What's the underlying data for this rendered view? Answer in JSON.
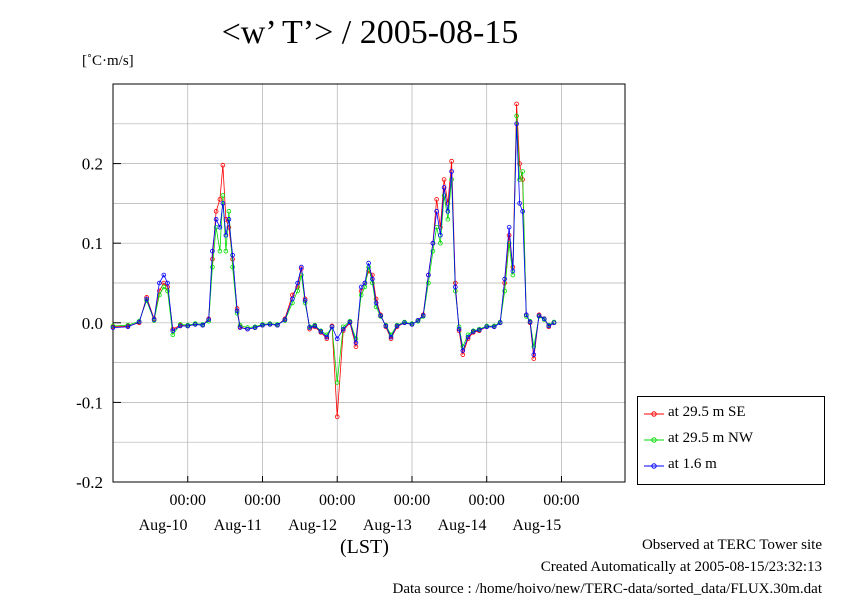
{
  "chart_data": {
    "type": "line",
    "title": "<w’ T’> / 2005-08-15",
    "y_unit": "[˚C·m/s]",
    "xlabel": "(LST)",
    "ylim": [
      -0.2,
      0.3
    ],
    "xlim": [
      -1.0,
      5.85
    ],
    "y_ticks": [
      0.2,
      0.1,
      0.0,
      -0.1,
      -0.2
    ],
    "y_tick_labels": [
      "0.2",
      "0.1",
      "0.0",
      "-0.1",
      "-0.2"
    ],
    "x_time_ticks": [
      0,
      1,
      2,
      3,
      4,
      5
    ],
    "x_time_labels": [
      "00:00",
      "00:00",
      "00:00",
      "00:00",
      "00:00",
      "00:00"
    ],
    "x_date_ticks": [
      -0.33,
      0.67,
      1.67,
      2.67,
      3.67,
      4.67
    ],
    "x_date_labels": [
      "Aug-10",
      "Aug-11",
      "Aug-12",
      "Aug-13",
      "Aug-14",
      "Aug-15"
    ],
    "grid": true,
    "legend_position": "bottom-right outside",
    "series": [
      {
        "name": "at 29.5 m SE",
        "color": "#ff0000",
        "points": [
          [
            -1.0,
            -0.005
          ],
          [
            -0.8,
            -0.004
          ],
          [
            -0.65,
            0.0
          ],
          [
            -0.55,
            0.032
          ],
          [
            -0.45,
            0.005
          ],
          [
            -0.38,
            0.04
          ],
          [
            -0.32,
            0.05
          ],
          [
            -0.27,
            0.045
          ],
          [
            -0.2,
            -0.008
          ],
          [
            -0.1,
            -0.003
          ],
          [
            0.0,
            -0.004
          ],
          [
            0.1,
            -0.002
          ],
          [
            0.2,
            -0.003
          ],
          [
            0.28,
            0.005
          ],
          [
            0.33,
            0.08
          ],
          [
            0.38,
            0.14
          ],
          [
            0.43,
            0.155
          ],
          [
            0.47,
            0.198
          ],
          [
            0.51,
            0.13
          ],
          [
            0.55,
            0.12
          ],
          [
            0.6,
            0.08
          ],
          [
            0.66,
            0.018
          ],
          [
            0.7,
            -0.005
          ],
          [
            0.8,
            -0.008
          ],
          [
            0.9,
            -0.006
          ],
          [
            1.0,
            -0.003
          ],
          [
            1.1,
            -0.002
          ],
          [
            1.2,
            -0.003
          ],
          [
            1.3,
            0.005
          ],
          [
            1.4,
            0.035
          ],
          [
            1.47,
            0.045
          ],
          [
            1.52,
            0.068
          ],
          [
            1.57,
            0.03
          ],
          [
            1.63,
            -0.008
          ],
          [
            1.7,
            -0.005
          ],
          [
            1.78,
            -0.012
          ],
          [
            1.86,
            -0.02
          ],
          [
            1.93,
            -0.004
          ],
          [
            2.0,
            -0.118
          ],
          [
            2.08,
            -0.01
          ],
          [
            2.17,
            0.0
          ],
          [
            2.25,
            -0.03
          ],
          [
            2.32,
            0.04
          ],
          [
            2.37,
            0.05
          ],
          [
            2.42,
            0.065
          ],
          [
            2.47,
            0.06
          ],
          [
            2.52,
            0.03
          ],
          [
            2.58,
            0.01
          ],
          [
            2.65,
            -0.005
          ],
          [
            2.72,
            -0.02
          ],
          [
            2.8,
            -0.005
          ],
          [
            2.9,
            0.0
          ],
          [
            3.0,
            -0.002
          ],
          [
            3.08,
            0.003
          ],
          [
            3.15,
            0.01
          ],
          [
            3.22,
            0.06
          ],
          [
            3.28,
            0.1
          ],
          [
            3.33,
            0.155
          ],
          [
            3.38,
            0.12
          ],
          [
            3.43,
            0.18
          ],
          [
            3.48,
            0.15
          ],
          [
            3.53,
            0.203
          ],
          [
            3.58,
            0.05
          ],
          [
            3.63,
            -0.01
          ],
          [
            3.68,
            -0.04
          ],
          [
            3.75,
            -0.02
          ],
          [
            3.82,
            -0.012
          ],
          [
            3.9,
            -0.01
          ],
          [
            4.0,
            -0.005
          ],
          [
            4.1,
            -0.005
          ],
          [
            4.18,
            0.0
          ],
          [
            4.24,
            0.05
          ],
          [
            4.3,
            0.11
          ],
          [
            4.35,
            0.07
          ],
          [
            4.4,
            0.275
          ],
          [
            4.44,
            0.2
          ],
          [
            4.48,
            0.18
          ],
          [
            4.53,
            0.01
          ],
          [
            4.58,
            0.0
          ],
          [
            4.63,
            -0.045
          ],
          [
            4.7,
            0.01
          ],
          [
            4.77,
            0.005
          ],
          [
            4.83,
            -0.005
          ],
          [
            4.9,
            0.0
          ]
        ]
      },
      {
        "name": "at 29.5 m NW",
        "color": "#00dd00",
        "points": [
          [
            -1.0,
            -0.004
          ],
          [
            -0.8,
            -0.003
          ],
          [
            -0.65,
            0.002
          ],
          [
            -0.55,
            0.028
          ],
          [
            -0.45,
            0.003
          ],
          [
            -0.38,
            0.035
          ],
          [
            -0.32,
            0.045
          ],
          [
            -0.27,
            0.04
          ],
          [
            -0.2,
            -0.015
          ],
          [
            -0.1,
            -0.002
          ],
          [
            0.0,
            -0.003
          ],
          [
            0.1,
            -0.001
          ],
          [
            0.2,
            -0.002
          ],
          [
            0.28,
            0.002
          ],
          [
            0.33,
            0.07
          ],
          [
            0.38,
            0.12
          ],
          [
            0.43,
            0.09
          ],
          [
            0.47,
            0.16
          ],
          [
            0.51,
            0.09
          ],
          [
            0.55,
            0.14
          ],
          [
            0.6,
            0.07
          ],
          [
            0.66,
            0.012
          ],
          [
            0.7,
            -0.003
          ],
          [
            0.8,
            -0.006
          ],
          [
            0.9,
            -0.005
          ],
          [
            1.0,
            -0.002
          ],
          [
            1.1,
            -0.001
          ],
          [
            1.2,
            -0.002
          ],
          [
            1.3,
            0.003
          ],
          [
            1.4,
            0.025
          ],
          [
            1.47,
            0.04
          ],
          [
            1.52,
            0.06
          ],
          [
            1.57,
            0.025
          ],
          [
            1.63,
            -0.005
          ],
          [
            1.7,
            -0.003
          ],
          [
            1.78,
            -0.01
          ],
          [
            1.86,
            -0.015
          ],
          [
            1.93,
            -0.005
          ],
          [
            2.0,
            -0.075
          ],
          [
            2.08,
            -0.005
          ],
          [
            2.17,
            0.002
          ],
          [
            2.25,
            -0.02
          ],
          [
            2.32,
            0.035
          ],
          [
            2.37,
            0.045
          ],
          [
            2.42,
            0.07
          ],
          [
            2.47,
            0.05
          ],
          [
            2.52,
            0.02
          ],
          [
            2.58,
            0.008
          ],
          [
            2.65,
            -0.003
          ],
          [
            2.72,
            -0.015
          ],
          [
            2.8,
            -0.003
          ],
          [
            2.9,
            0.001
          ],
          [
            3.0,
            -0.001
          ],
          [
            3.08,
            0.002
          ],
          [
            3.15,
            0.008
          ],
          [
            3.22,
            0.05
          ],
          [
            3.28,
            0.09
          ],
          [
            3.33,
            0.12
          ],
          [
            3.38,
            0.1
          ],
          [
            3.43,
            0.16
          ],
          [
            3.48,
            0.13
          ],
          [
            3.53,
            0.18
          ],
          [
            3.58,
            0.04
          ],
          [
            3.63,
            -0.005
          ],
          [
            3.68,
            -0.03
          ],
          [
            3.75,
            -0.015
          ],
          [
            3.82,
            -0.01
          ],
          [
            3.9,
            -0.008
          ],
          [
            4.0,
            -0.004
          ],
          [
            4.1,
            -0.004
          ],
          [
            4.18,
            0.001
          ],
          [
            4.24,
            0.04
          ],
          [
            4.3,
            0.1
          ],
          [
            4.35,
            0.06
          ],
          [
            4.4,
            0.26
          ],
          [
            4.44,
            0.18
          ],
          [
            4.48,
            0.19
          ],
          [
            4.53,
            0.008
          ],
          [
            4.58,
            0.002
          ],
          [
            4.63,
            -0.03
          ],
          [
            4.7,
            0.008
          ],
          [
            4.77,
            0.004
          ],
          [
            4.83,
            -0.003
          ],
          [
            4.9,
            0.001
          ]
        ]
      },
      {
        "name": "at 1.6 m",
        "color": "#0000ff",
        "points": [
          [
            -1.0,
            -0.006
          ],
          [
            -0.8,
            -0.005
          ],
          [
            -0.65,
            0.001
          ],
          [
            -0.55,
            0.03
          ],
          [
            -0.45,
            0.004
          ],
          [
            -0.38,
            0.05
          ],
          [
            -0.32,
            0.06
          ],
          [
            -0.27,
            0.05
          ],
          [
            -0.2,
            -0.01
          ],
          [
            -0.1,
            -0.004
          ],
          [
            0.0,
            -0.004
          ],
          [
            0.1,
            -0.002
          ],
          [
            0.2,
            -0.003
          ],
          [
            0.28,
            0.004
          ],
          [
            0.33,
            0.09
          ],
          [
            0.38,
            0.13
          ],
          [
            0.43,
            0.12
          ],
          [
            0.47,
            0.15
          ],
          [
            0.51,
            0.11
          ],
          [
            0.55,
            0.13
          ],
          [
            0.6,
            0.085
          ],
          [
            0.66,
            0.015
          ],
          [
            0.7,
            -0.006
          ],
          [
            0.8,
            -0.008
          ],
          [
            0.9,
            -0.006
          ],
          [
            1.0,
            -0.003
          ],
          [
            1.1,
            -0.002
          ],
          [
            1.2,
            -0.003
          ],
          [
            1.3,
            0.004
          ],
          [
            1.4,
            0.03
          ],
          [
            1.47,
            0.05
          ],
          [
            1.52,
            0.07
          ],
          [
            1.57,
            0.028
          ],
          [
            1.63,
            -0.006
          ],
          [
            1.7,
            -0.004
          ],
          [
            1.78,
            -0.011
          ],
          [
            1.86,
            -0.018
          ],
          [
            1.93,
            -0.005
          ],
          [
            2.0,
            -0.02
          ],
          [
            2.08,
            -0.008
          ],
          [
            2.17,
            0.001
          ],
          [
            2.25,
            -0.025
          ],
          [
            2.32,
            0.045
          ],
          [
            2.37,
            0.05
          ],
          [
            2.42,
            0.075
          ],
          [
            2.47,
            0.055
          ],
          [
            2.52,
            0.025
          ],
          [
            2.58,
            0.009
          ],
          [
            2.65,
            -0.004
          ],
          [
            2.72,
            -0.018
          ],
          [
            2.8,
            -0.004
          ],
          [
            2.9,
            0.0
          ],
          [
            3.0,
            -0.002
          ],
          [
            3.08,
            0.003
          ],
          [
            3.15,
            0.009
          ],
          [
            3.22,
            0.06
          ],
          [
            3.28,
            0.1
          ],
          [
            3.33,
            0.14
          ],
          [
            3.38,
            0.11
          ],
          [
            3.43,
            0.17
          ],
          [
            3.48,
            0.14
          ],
          [
            3.53,
            0.19
          ],
          [
            3.58,
            0.045
          ],
          [
            3.63,
            -0.008
          ],
          [
            3.68,
            -0.035
          ],
          [
            3.75,
            -0.018
          ],
          [
            3.82,
            -0.011
          ],
          [
            3.9,
            -0.009
          ],
          [
            4.0,
            -0.005
          ],
          [
            4.1,
            -0.005
          ],
          [
            4.18,
            0.0
          ],
          [
            4.24,
            0.055
          ],
          [
            4.3,
            0.12
          ],
          [
            4.35,
            0.065
          ],
          [
            4.4,
            0.25
          ],
          [
            4.44,
            0.15
          ],
          [
            4.48,
            0.14
          ],
          [
            4.53,
            0.01
          ],
          [
            4.58,
            0.001
          ],
          [
            4.63,
            -0.04
          ],
          [
            4.7,
            0.009
          ],
          [
            4.77,
            0.005
          ],
          [
            4.83,
            -0.004
          ],
          [
            4.9,
            0.0
          ]
        ]
      }
    ]
  },
  "footer": {
    "line1": "Observed at TERC Tower site",
    "line2": "Created Automatically at 2005-08-15/23:32:13",
    "line3": "Data source : /home/hoivo/new/TERC-data/sorted_data/FLUX.30m.dat"
  }
}
